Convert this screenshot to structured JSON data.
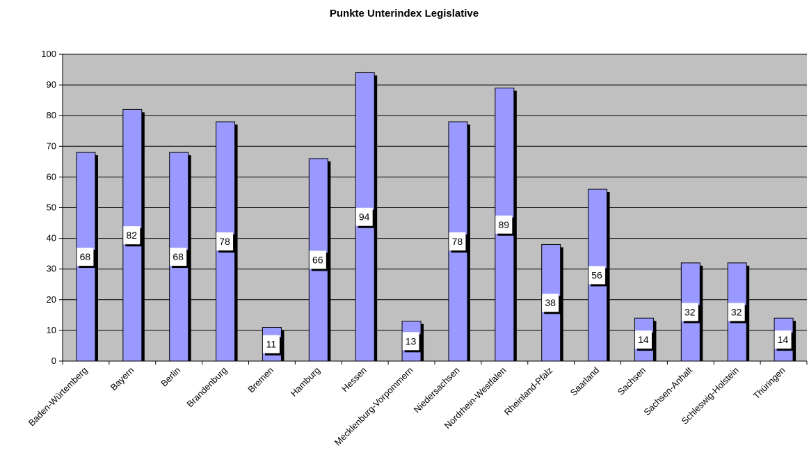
{
  "chart_data": {
    "type": "bar",
    "title": "Punkte Unterindex Legislative",
    "xlabel": "",
    "ylabel": "",
    "ylim": [
      0,
      100
    ],
    "yticks": [
      0,
      10,
      20,
      30,
      40,
      50,
      60,
      70,
      80,
      90,
      100
    ],
    "grid": true,
    "legend": "none",
    "categories": [
      "Baden-Würtemberg",
      "Bayern",
      "Berlin",
      "Brandenburg",
      "Bremen",
      "Hamburg",
      "Hessen",
      "Mecklenburg-Vorpommern",
      "Niedersachsen",
      "Nordrhein-Westfalen",
      "Rheinland-Pfalz",
      "Saarland",
      "Sachsen",
      "Sachsen-Anhalt",
      "Schleswig-Holstein",
      "Thüringen"
    ],
    "values": [
      68,
      82,
      68,
      78,
      11,
      66,
      94,
      13,
      78,
      89,
      38,
      56,
      14,
      32,
      32,
      14
    ],
    "data_labels": [
      "68",
      "82",
      "68",
      "78",
      "11",
      "66",
      "94",
      "13",
      "78",
      "89",
      "38",
      "56",
      "14",
      "32",
      "32",
      "14"
    ],
    "colors": {
      "plot_background": "#c0c0c0",
      "bar_fill": "#9999ff",
      "bar_shadow": "#000000",
      "gridline": "#000000"
    }
  }
}
